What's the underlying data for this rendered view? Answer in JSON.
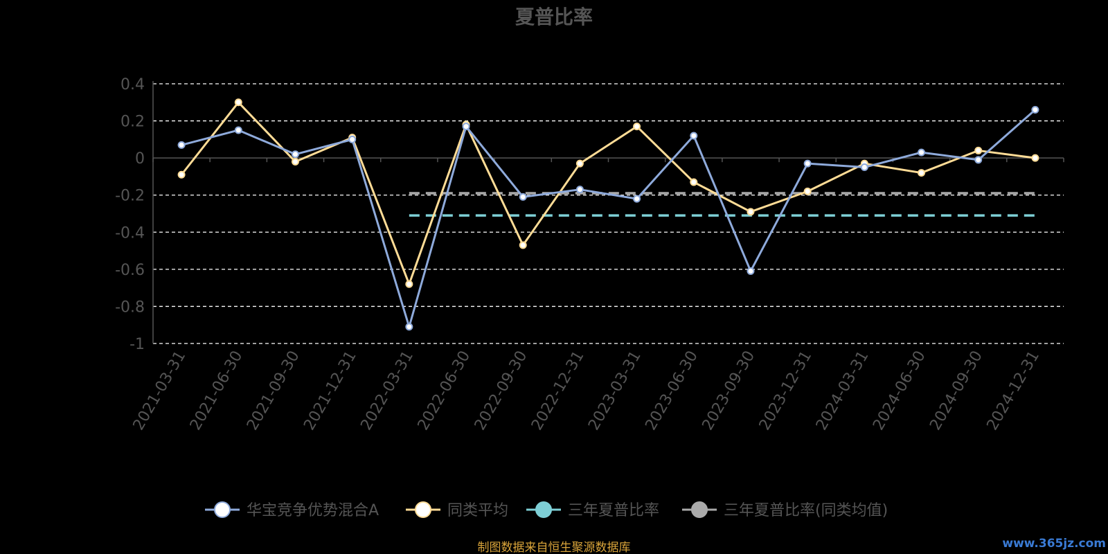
{
  "chart_data": {
    "type": "line",
    "title": "夏普比率",
    "categories": [
      "2021-03-31",
      "2021-06-30",
      "2021-09-30",
      "2021-12-31",
      "2022-03-31",
      "2022-06-30",
      "2022-09-30",
      "2022-12-31",
      "2023-03-31",
      "2023-06-30",
      "2023-09-30",
      "2023-12-31",
      "2024-03-31",
      "2024-06-30",
      "2024-09-30",
      "2024-12-31"
    ],
    "yticks": [
      0.4,
      0.2,
      0,
      -0.2,
      -0.4,
      -0.6,
      -0.8,
      -1
    ],
    "ylim": [
      -1,
      0.4
    ],
    "grid": true,
    "series": [
      {
        "name": "华宝竞争优势混合A",
        "color": "#8eaadb",
        "values": [
          0.07,
          0.15,
          0.02,
          0.1,
          -0.91,
          0.17,
          -0.21,
          -0.17,
          -0.22,
          0.12,
          -0.61,
          -0.03,
          -0.05,
          0.03,
          -0.01,
          0.26
        ]
      },
      {
        "name": "同类平均",
        "color": "#ffdc96",
        "values": [
          -0.09,
          0.3,
          -0.02,
          0.11,
          -0.68,
          0.18,
          -0.47,
          -0.03,
          0.17,
          -0.13,
          -0.29,
          -0.18,
          -0.03,
          -0.08,
          0.04,
          0.0
        ]
      },
      {
        "name": "三年夏普比率",
        "color": "#7ecfd6",
        "start_index": 4,
        "end_index": 15,
        "value": -0.31
      },
      {
        "name": "三年夏普比率(同类均值)",
        "color": "#aaaaaa",
        "start_index": 4,
        "end_index": 15,
        "value": -0.19
      }
    ],
    "legend_position": "bottom",
    "source": "制图数据来自恒生聚源数据库",
    "watermark": "www.365jz.com"
  }
}
